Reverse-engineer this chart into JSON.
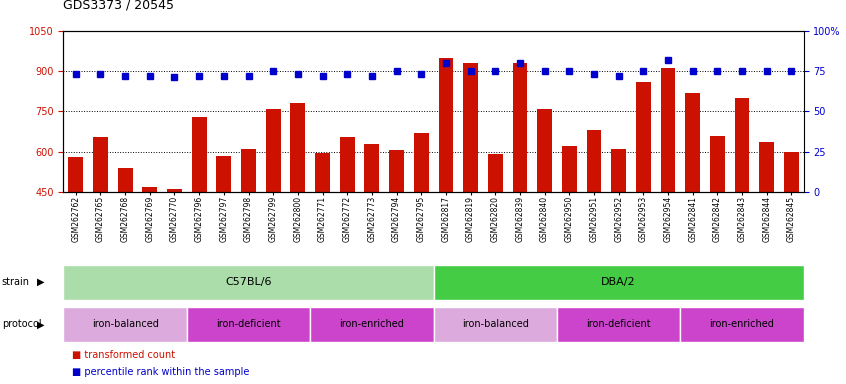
{
  "title": "GDS3373 / 20545",
  "samples": [
    "GSM262762",
    "GSM262765",
    "GSM262768",
    "GSM262769",
    "GSM262770",
    "GSM262796",
    "GSM262797",
    "GSM262798",
    "GSM262799",
    "GSM262800",
    "GSM262771",
    "GSM262772",
    "GSM262773",
    "GSM262794",
    "GSM262795",
    "GSM262817",
    "GSM262819",
    "GSM262820",
    "GSM262839",
    "GSM262840",
    "GSM262950",
    "GSM262951",
    "GSM262952",
    "GSM262953",
    "GSM262954",
    "GSM262841",
    "GSM262842",
    "GSM262843",
    "GSM262844",
    "GSM262845"
  ],
  "bar_values": [
    580,
    655,
    540,
    470,
    460,
    730,
    585,
    610,
    760,
    780,
    595,
    655,
    630,
    605,
    670,
    950,
    930,
    590,
    930,
    760,
    620,
    680,
    610,
    860,
    910,
    820,
    660,
    800,
    635,
    600
  ],
  "dot_values": [
    73,
    73,
    72,
    72,
    71,
    72,
    72,
    72,
    75,
    73,
    72,
    73,
    72,
    75,
    73,
    80,
    75,
    75,
    80,
    75,
    75,
    73,
    72,
    75,
    82,
    75,
    75,
    75,
    75,
    75
  ],
  "ylim_left": [
    450,
    1050
  ],
  "ylim_right": [
    0,
    100
  ],
  "yticks_left": [
    450,
    600,
    750,
    900,
    1050
  ],
  "yticks_right": [
    0,
    25,
    50,
    75,
    100
  ],
  "bar_color": "#cc1100",
  "dot_color": "#0000cc",
  "strain_groups": [
    {
      "label": "C57BL/6",
      "start": 0,
      "end": 15,
      "color": "#aaddaa"
    },
    {
      "label": "DBA/2",
      "start": 15,
      "end": 30,
      "color": "#44cc44"
    }
  ],
  "protocol_groups": [
    {
      "label": "iron-balanced",
      "start": 0,
      "end": 5,
      "color": "#ddaadd"
    },
    {
      "label": "iron-deficient",
      "start": 5,
      "end": 10,
      "color": "#cc44cc"
    },
    {
      "label": "iron-enriched",
      "start": 10,
      "end": 15,
      "color": "#cc44cc"
    },
    {
      "label": "iron-balanced",
      "start": 15,
      "end": 20,
      "color": "#ddaadd"
    },
    {
      "label": "iron-deficient",
      "start": 20,
      "end": 25,
      "color": "#cc44cc"
    },
    {
      "label": "iron-enriched",
      "start": 25,
      "end": 30,
      "color": "#cc44cc"
    }
  ],
  "protocol_colors_map": [
    "#ddaadd",
    "#cc44cc",
    "#cc44cc",
    "#ddaadd",
    "#cc44cc",
    "#cc44cc"
  ]
}
